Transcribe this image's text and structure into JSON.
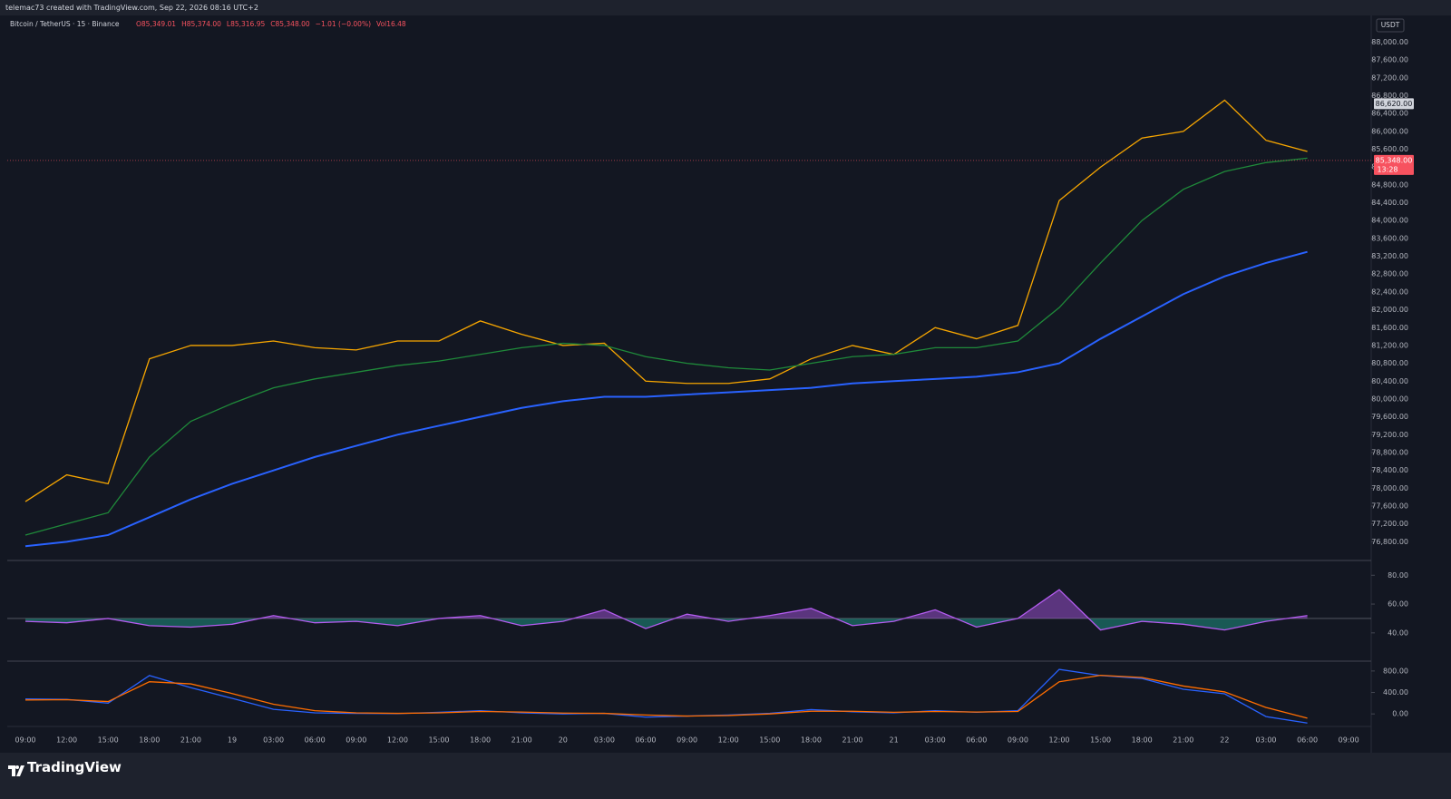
{
  "header": "telemac73 created with TradingView.com, Sep 22, 2026 08:16 UTC+2",
  "brand": "TradingView",
  "legend": {
    "symbol": "Bitcoin / TetherUS · 15 · Binance",
    "ohlc": [
      "O85,349.01",
      "H85,374.00",
      "L85,316.95",
      "C85,348.00",
      "−1.01 (−0.00%)",
      "Vol16.48"
    ],
    "currency": "USDT"
  },
  "price_tags": [
    {
      "value": 86620,
      "label": "86,620.00",
      "color": "#d1d4dc"
    },
    {
      "value": 85348,
      "label": "85,348.00",
      "color": "#f7525f",
      "countdown": "13:28"
    }
  ],
  "chart_data": [
    {
      "type": "line",
      "categories": [
        "09:00",
        "12:00",
        "15:00",
        "18:00",
        "21:00",
        "19",
        "03:00",
        "06:00",
        "09:00",
        "12:00",
        "15:00",
        "18:00",
        "21:00",
        "20",
        "03:00",
        "06:00",
        "09:00",
        "12:00",
        "15:00",
        "18:00",
        "21:00",
        "21",
        "03:00",
        "06:00",
        "09:00",
        "12:00",
        "15:00",
        "18:00",
        "21:00",
        "22",
        "03:00",
        "06:00",
        "09:00"
      ],
      "series": [
        {
          "color": "#f7a600",
          "values": [
            77700,
            78300,
            78100,
            80900,
            81200,
            81200,
            81300,
            81150,
            81100,
            81300,
            81300,
            81750,
            81450,
            81200,
            81250,
            80400,
            80350,
            80350,
            80450,
            80900,
            81200,
            81000,
            81600,
            81350,
            81650,
            84450,
            85200,
            85850,
            86000,
            86700,
            85800,
            85550,
            null
          ]
        },
        {
          "color": "#1f8a3a",
          "values": [
            76950,
            77200,
            77450,
            78700,
            79500,
            79900,
            80250,
            80450,
            80600,
            80750,
            80850,
            81000,
            81150,
            81250,
            81200,
            80950,
            80800,
            80700,
            80650,
            80800,
            80950,
            81000,
            81150,
            81150,
            81300,
            82050,
            83050,
            84000,
            84700,
            85100,
            85300,
            85400,
            null
          ]
        },
        {
          "color": "#2962ff",
          "values": [
            76700,
            76800,
            76950,
            77350,
            77750,
            78100,
            78400,
            78700,
            78950,
            79200,
            79400,
            79600,
            79800,
            79950,
            80050,
            80050,
            80100,
            80150,
            80200,
            80250,
            80350,
            80400,
            80450,
            80500,
            80600,
            80800,
            81350,
            81850,
            82350,
            82750,
            83050,
            83300,
            null
          ]
        }
      ],
      "ylim": [
        76400,
        88600
      ],
      "yticks": [
        {
          "value": 76800,
          "label": "76,800.00"
        },
        {
          "value": 77200,
          "label": "77,200.00"
        },
        {
          "value": 77600,
          "label": "77,600.00"
        },
        {
          "value": 78000,
          "label": "78,000.00"
        },
        {
          "value": 78400,
          "label": "78,400.00"
        },
        {
          "value": 78800,
          "label": "78,800.00"
        },
        {
          "value": 79200,
          "label": "79,200.00"
        },
        {
          "value": 79600,
          "label": "79,600.00"
        },
        {
          "value": 80000,
          "label": "80,000.00"
        },
        {
          "value": 80400,
          "label": "80,400.00"
        },
        {
          "value": 80800,
          "label": "80,800.00"
        },
        {
          "value": 81200,
          "label": "81,200.00"
        },
        {
          "value": 81600,
          "label": "81,600.00"
        },
        {
          "value": 82000,
          "label": "82,000.00"
        },
        {
          "value": 82400,
          "label": "82,400.00"
        },
        {
          "value": 82800,
          "label": "82,800.00"
        },
        {
          "value": 83200,
          "label": "83,200.00"
        },
        {
          "value": 83600,
          "label": "83,600.00"
        },
        {
          "value": 84000,
          "label": "84,000.00"
        },
        {
          "value": 84400,
          "label": "84,400.00"
        },
        {
          "value": 84800,
          "label": "84,800.00"
        },
        {
          "value": 85200,
          "label": "85,200.00"
        },
        {
          "value": 85600,
          "label": "85,600.00"
        },
        {
          "value": 86000,
          "label": "86,000.00"
        },
        {
          "value": 86400,
          "label": "86,400.00"
        },
        {
          "value": 86800,
          "label": "86,800.00"
        },
        {
          "value": 87200,
          "label": "87,200.00"
        },
        {
          "value": 87600,
          "label": "87,600.00"
        },
        {
          "value": 88000,
          "label": "88,000.00"
        }
      ]
    },
    {
      "type": "area",
      "series": [
        {
          "color": "#b45cf0",
          "values": [
            48,
            47,
            50,
            45,
            44,
            46,
            52,
            47,
            48,
            45,
            50,
            52,
            45,
            48,
            56,
            43,
            53,
            48,
            52,
            57,
            45,
            48,
            56,
            44,
            50,
            70,
            42,
            48,
            46,
            42,
            48,
            52,
            null
          ]
        }
      ],
      "baseline": 50,
      "below_color": "#22ab94",
      "ylim": [
        21,
        89
      ],
      "yticks": [
        {
          "value": 40,
          "label": "40.00"
        },
        {
          "value": 60,
          "label": "60.00"
        },
        {
          "value": 80,
          "label": "80.00"
        }
      ]
    },
    {
      "type": "line",
      "series": [
        {
          "color": "#2962ff",
          "values": [
            280,
            270,
            200,
            715,
            490,
            290,
            85,
            20,
            10,
            5,
            30,
            60,
            20,
            0,
            10,
            -60,
            -40,
            -20,
            10,
            80,
            40,
            20,
            60,
            30,
            60,
            830,
            715,
            660,
            460,
            375,
            -50,
            -170,
            null
          ]
        },
        {
          "color": "#ff6d00",
          "values": [
            260,
            265,
            230,
            600,
            560,
            380,
            180,
            60,
            20,
            10,
            20,
            45,
            35,
            15,
            10,
            -20,
            -40,
            -30,
            0,
            50,
            50,
            30,
            45,
            35,
            45,
            600,
            720,
            680,
            520,
            410,
            120,
            -80,
            null
          ]
        }
      ],
      "ylim": [
        -200,
        950
      ],
      "yticks": [
        {
          "value": 0,
          "label": "0.00"
        },
        {
          "value": 400,
          "label": "400.00"
        },
        {
          "value": 800,
          "label": "800.00"
        }
      ]
    }
  ]
}
